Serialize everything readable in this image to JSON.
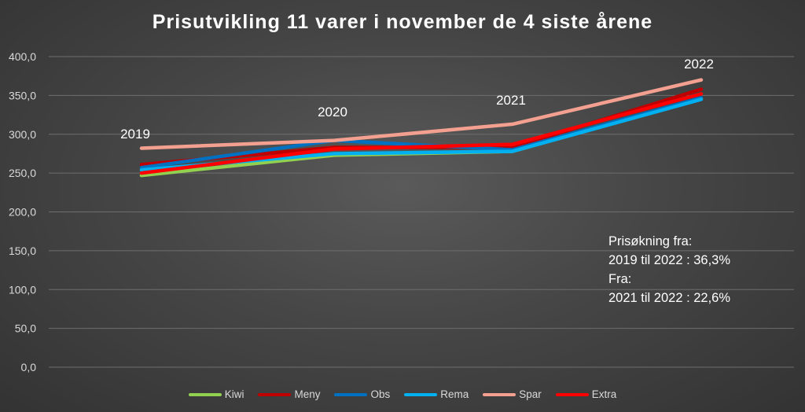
{
  "chart_data": {
    "type": "line",
    "title": "Prisutvikling 11 varer i november de 4 siste årene",
    "categories": [
      "2019",
      "2020",
      "2021",
      "2022"
    ],
    "ylim": [
      0,
      400
    ],
    "yticks": [
      "0,0",
      "50,0",
      "100,0",
      "150,0",
      "200,0",
      "250,0",
      "300,0",
      "350,0",
      "400,0"
    ],
    "grid": true,
    "legend_position": "bottom",
    "series": [
      {
        "name": "Kiwi",
        "color": "#92d050",
        "values": [
          247,
          273,
          278,
          346
        ]
      },
      {
        "name": "Meny",
        "color": "#c00000",
        "values": [
          261,
          283,
          283,
          358
        ]
      },
      {
        "name": "Obs",
        "color": "#0070c0",
        "values": [
          257,
          292,
          280,
          347
        ]
      },
      {
        "name": "Rema",
        "color": "#00b0f0",
        "values": [
          254,
          275,
          278,
          345
        ]
      },
      {
        "name": "Spar",
        "color": "#f4a090",
        "values": [
          282,
          292,
          313,
          370
        ]
      },
      {
        "name": "Extra",
        "color": "#ff0000",
        "values": [
          250,
          281,
          287,
          352
        ]
      }
    ],
    "annotations": [
      "Prisøkning fra:",
      "2019 til 2022 : 36,3%",
      "Fra:",
      "2021 til 2022 : 22,6%"
    ]
  }
}
